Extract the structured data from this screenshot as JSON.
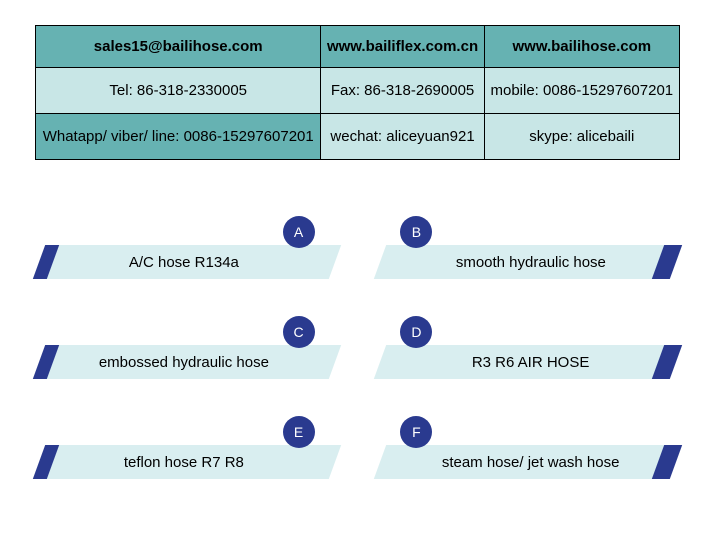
{
  "colors": {
    "table_header_bg": "#66b2b2",
    "table_cell_bg": "#c8e6e6",
    "table_border": "#000000",
    "badge_bg": "#2a3a8f",
    "accent_bg": "#2a3a8f",
    "strip_bg": "#d9eef0",
    "text": "#000000",
    "badge_text": "#ffffff"
  },
  "contact_table": {
    "rows": [
      [
        "sales15@bailihose.com",
        "www.bailiflex.com.cn",
        "www.bailihose.com"
      ],
      [
        "Tel: 86-318-2330005",
        "Fax: 86-318-2690005",
        "mobile: 0086-15297607201"
      ],
      [
        "Whatapp/ viber/ line: 0086-15297607201",
        "wechat: aliceyuan921",
        "skype: alicebaili"
      ]
    ]
  },
  "products": [
    {
      "badge": "A",
      "label": "A/C hose R134a",
      "side": "left"
    },
    {
      "badge": "B",
      "label": "smooth hydraulic hose",
      "side": "right"
    },
    {
      "badge": "C",
      "label": "embossed hydraulic hose",
      "side": "left"
    },
    {
      "badge": "D",
      "label": "R3 R6  AIR HOSE",
      "side": "right"
    },
    {
      "badge": "E",
      "label": "teflon hose  R7 R8",
      "side": "left"
    },
    {
      "badge": "F",
      "label": "steam hose/ jet wash hose",
      "side": "right"
    }
  ]
}
